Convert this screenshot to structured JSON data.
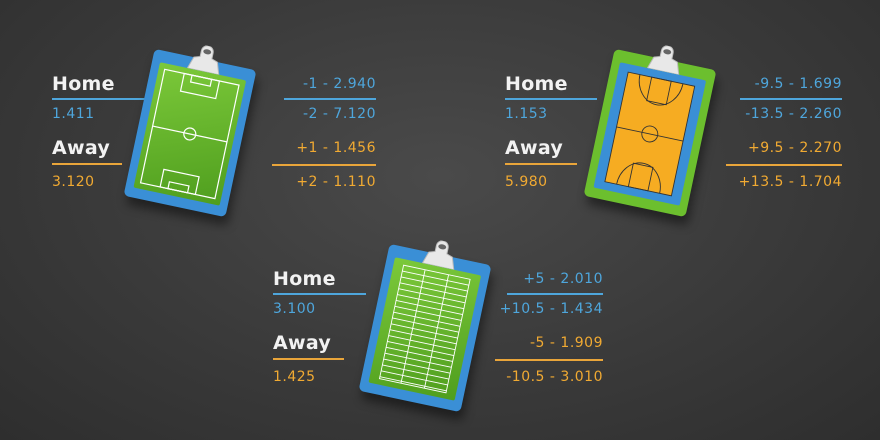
{
  "colors": {
    "home": "#4ea6dc",
    "away": "#f1aa32",
    "background": "#3a3a3a"
  },
  "panels": [
    {
      "sport_icon": "soccer-field-clipboard",
      "home_label": "Home",
      "home_odds": "1.411",
      "away_label": "Away",
      "away_odds": "3.120",
      "home_handicaps": [
        "-1 - 2.940",
        "-2 - 7.120"
      ],
      "away_handicaps": [
        "+1 - 1.456",
        "+2 - 1.110"
      ]
    },
    {
      "sport_icon": "basketball-court-clipboard",
      "home_label": "Home",
      "home_odds": "1.153",
      "away_label": "Away",
      "away_odds": "5.980",
      "home_handicaps": [
        "-9.5 - 1.699",
        "-13.5 - 2.260"
      ],
      "away_handicaps": [
        "+9.5 - 2.270",
        "+13.5 - 1.704"
      ]
    },
    {
      "sport_icon": "american-football-field-clipboard",
      "home_label": "Home",
      "home_odds": "3.100",
      "away_label": "Away",
      "away_odds": "1.425",
      "home_handicaps": [
        "+5 - 2.010",
        "+10.5 - 1.434"
      ],
      "away_handicaps": [
        "-5 - 1.909",
        "-10.5 - 3.010"
      ]
    }
  ]
}
